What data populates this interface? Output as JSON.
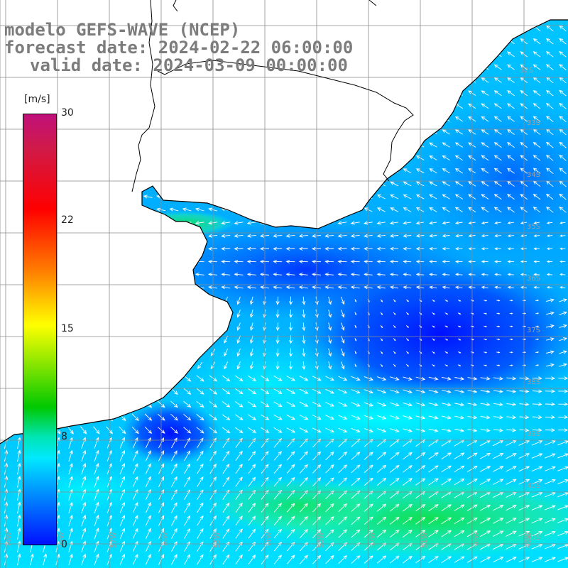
{
  "title": {
    "model": "modelo GEFS-WAVE (NCEP)",
    "forecast": "forecast date: 2024-02-22 06:00:00",
    "valid": "valid date: 2024-03-09 00:00:00"
  },
  "colorbar": {
    "unit": "[m/s]",
    "min": 0,
    "max": 30,
    "tick_labels": [
      "30",
      "22",
      "15",
      "8",
      "0"
    ],
    "colors": [
      "#0010ff",
      "#0090ff",
      "#00e8ff",
      "#00e5b4",
      "#00c800",
      "#6ee000",
      "#ffff00",
      "#ff7a00",
      "#ff0000",
      "#d01a48",
      "#c0107a"
    ]
  },
  "grid": {
    "lat_labels": [
      "32S",
      "33S",
      "34S",
      "35S",
      "36S",
      "37S",
      "38S",
      "39S",
      "40S",
      "41S"
    ],
    "lon_labels": [
      "59W",
      "58W",
      "57W",
      "56W",
      "55W",
      "54W",
      "53W",
      "52W",
      "51W",
      "50W",
      "49W"
    ]
  },
  "colors": {
    "land": "#ffffff",
    "coast": "#000000",
    "grid": "#8a8a8a",
    "arrows": "#ffffff"
  }
}
